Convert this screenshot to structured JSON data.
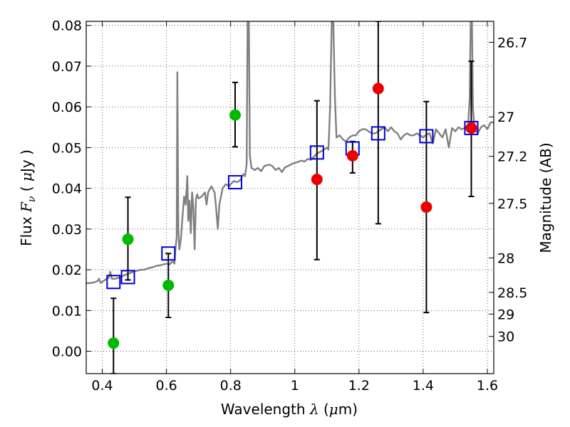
{
  "chart_data": {
    "type": "scatter",
    "xlabel": "Wavelength  λ (μm)",
    "xlabel_parts": {
      "pre": "Wavelength  ",
      "sym": "λ",
      "post": " (",
      "mu": "μ",
      "unit": "m)"
    },
    "ylabel": "Flux  Fν  ( μJy )",
    "ylabel_parts": {
      "pre": "Flux  ",
      "sym": "F",
      "sub": "ν",
      "open": "  ( ",
      "mu": "μ",
      "unit": "Jy )"
    },
    "y2label": "Magnitude (AB)",
    "xlim": [
      0.35,
      1.62
    ],
    "ylim": [
      -0.0055,
      0.081
    ],
    "xticks": [
      0.4,
      0.6,
      0.8,
      1.0,
      1.2,
      1.4,
      1.6
    ],
    "xtick_labels": [
      "0.4",
      "0.6",
      "0.8",
      "1",
      "1.2",
      "1.4",
      "1.6"
    ],
    "yticks": [
      0.0,
      0.01,
      0.02,
      0.03,
      0.04,
      0.05,
      0.06,
      0.07,
      0.08
    ],
    "ytick_labels": [
      "0.00",
      "0.01",
      "0.02",
      "0.03",
      "0.04",
      "0.05",
      "0.06",
      "0.07",
      "0.08"
    ],
    "mag_ticks": [
      26.7,
      27,
      27.2,
      27.5,
      28,
      28.5,
      29,
      30
    ],
    "mag_tick_labels": [
      "26.7",
      "27",
      "27.2",
      "27.5",
      "28",
      "28.5",
      "29",
      "30"
    ],
    "grid": true,
    "colors": {
      "spectrum": "#808080",
      "green": "#00bb00",
      "red": "#ee0000",
      "model": "#0000dd",
      "errorbar": "#000000"
    },
    "observed_green": [
      {
        "x": 0.435,
        "y": 0.002,
        "ylo": -0.0055,
        "yhi": 0.013
      },
      {
        "x": 0.48,
        "y": 0.0275,
        "ylo": 0.0175,
        "yhi": 0.0378
      },
      {
        "x": 0.606,
        "y": 0.0162,
        "ylo": 0.0083,
        "yhi": 0.024
      },
      {
        "x": 0.814,
        "y": 0.058,
        "ylo": 0.0502,
        "yhi": 0.066
      }
    ],
    "observed_red": [
      {
        "x": 1.069,
        "y": 0.0422,
        "ylo": 0.0225,
        "yhi": 0.0615
      },
      {
        "x": 1.18,
        "y": 0.048,
        "ylo": 0.0438,
        "yhi": 0.0515
      },
      {
        "x": 1.26,
        "y": 0.0645,
        "ylo": 0.0313,
        "yhi": 0.081
      },
      {
        "x": 1.41,
        "y": 0.0354,
        "ylo": 0.0095,
        "yhi": 0.0613
      },
      {
        "x": 1.55,
        "y": 0.0548,
        "ylo": 0.038,
        "yhi": 0.0712
      }
    ],
    "model_points": [
      {
        "x": 0.435,
        "y": 0.017
      },
      {
        "x": 0.48,
        "y": 0.0182
      },
      {
        "x": 0.606,
        "y": 0.024
      },
      {
        "x": 0.814,
        "y": 0.0415
      },
      {
        "x": 1.069,
        "y": 0.0488
      },
      {
        "x": 1.18,
        "y": 0.0498
      },
      {
        "x": 1.26,
        "y": 0.0535
      },
      {
        "x": 1.41,
        "y": 0.0528
      },
      {
        "x": 1.55,
        "y": 0.0548
      }
    ],
    "spectrum": [
      [
        0.35,
        0.0167
      ],
      [
        0.37,
        0.0168
      ],
      [
        0.385,
        0.0172
      ],
      [
        0.39,
        0.0178
      ],
      [
        0.395,
        0.0168
      ],
      [
        0.4,
        0.017
      ],
      [
        0.41,
        0.0176
      ],
      [
        0.42,
        0.018
      ],
      [
        0.425,
        0.0195
      ],
      [
        0.43,
        0.0178
      ],
      [
        0.44,
        0.0178
      ],
      [
        0.45,
        0.018
      ],
      [
        0.46,
        0.0183
      ],
      [
        0.47,
        0.0187
      ],
      [
        0.48,
        0.019
      ],
      [
        0.49,
        0.0193
      ],
      [
        0.5,
        0.0196
      ],
      [
        0.51,
        0.0198
      ],
      [
        0.52,
        0.02
      ],
      [
        0.53,
        0.02
      ],
      [
        0.54,
        0.0203
      ],
      [
        0.55,
        0.0205
      ],
      [
        0.56,
        0.0207
      ],
      [
        0.57,
        0.021
      ],
      [
        0.58,
        0.0211
      ],
      [
        0.59,
        0.0213
      ],
      [
        0.6,
        0.0215
      ],
      [
        0.61,
        0.0213
      ],
      [
        0.615,
        0.0218
      ],
      [
        0.62,
        0.022
      ],
      [
        0.625,
        0.0215
      ],
      [
        0.628,
        0.025
      ],
      [
        0.632,
        0.028
      ],
      [
        0.634,
        0.0685
      ],
      [
        0.637,
        0.03
      ],
      [
        0.64,
        0.025
      ],
      [
        0.645,
        0.0275
      ],
      [
        0.65,
        0.033
      ],
      [
        0.655,
        0.038
      ],
      [
        0.66,
        0.036
      ],
      [
        0.665,
        0.043
      ],
      [
        0.668,
        0.032
      ],
      [
        0.672,
        0.037
      ],
      [
        0.676,
        0.029
      ],
      [
        0.68,
        0.039
      ],
      [
        0.684,
        0.035
      ],
      [
        0.688,
        0.025
      ],
      [
        0.692,
        0.0375
      ],
      [
        0.696,
        0.0385
      ],
      [
        0.7,
        0.0375
      ],
      [
        0.71,
        0.038
      ],
      [
        0.72,
        0.039
      ],
      [
        0.725,
        0.036
      ],
      [
        0.73,
        0.039
      ],
      [
        0.74,
        0.0405
      ],
      [
        0.75,
        0.039
      ],
      [
        0.755,
        0.035
      ],
      [
        0.76,
        0.03
      ],
      [
        0.765,
        0.036
      ],
      [
        0.775,
        0.04
      ],
      [
        0.785,
        0.041
      ],
      [
        0.795,
        0.0405
      ],
      [
        0.8,
        0.041
      ],
      [
        0.81,
        0.0418
      ],
      [
        0.82,
        0.0415
      ],
      [
        0.83,
        0.042
      ],
      [
        0.84,
        0.0435
      ],
      [
        0.845,
        0.043
      ],
      [
        0.85,
        0.046
      ],
      [
        0.853,
        0.081
      ],
      [
        0.857,
        0.081
      ],
      [
        0.86,
        0.048
      ],
      [
        0.865,
        0.045
      ],
      [
        0.875,
        0.0445
      ],
      [
        0.885,
        0.045
      ],
      [
        0.895,
        0.0442
      ],
      [
        0.905,
        0.0455
      ],
      [
        0.92,
        0.0458
      ],
      [
        0.93,
        0.0455
      ],
      [
        0.94,
        0.0445
      ],
      [
        0.95,
        0.045
      ],
      [
        0.96,
        0.044
      ],
      [
        0.97,
        0.0452
      ],
      [
        0.98,
        0.0455
      ],
      [
        0.99,
        0.046
      ],
      [
        1.0,
        0.0462
      ],
      [
        1.01,
        0.0465
      ],
      [
        1.02,
        0.0468
      ],
      [
        1.03,
        0.0466
      ],
      [
        1.04,
        0.0472
      ],
      [
        1.05,
        0.047
      ],
      [
        1.06,
        0.0478
      ],
      [
        1.07,
        0.0486
      ],
      [
        1.08,
        0.049
      ],
      [
        1.09,
        0.0495
      ],
      [
        1.1,
        0.05
      ],
      [
        1.105,
        0.0495
      ],
      [
        1.11,
        0.06
      ],
      [
        1.115,
        0.081
      ],
      [
        1.12,
        0.081
      ],
      [
        1.125,
        0.062
      ],
      [
        1.13,
        0.0525
      ],
      [
        1.14,
        0.053
      ],
      [
        1.15,
        0.052
      ],
      [
        1.16,
        0.0515
      ],
      [
        1.17,
        0.0525
      ],
      [
        1.18,
        0.053
      ],
      [
        1.19,
        0.053
      ],
      [
        1.2,
        0.054
      ],
      [
        1.21,
        0.0545
      ],
      [
        1.22,
        0.0545
      ],
      [
        1.23,
        0.054
      ],
      [
        1.24,
        0.0535
      ],
      [
        1.25,
        0.0535
      ],
      [
        1.26,
        0.054
      ],
      [
        1.27,
        0.0545
      ],
      [
        1.28,
        0.055
      ],
      [
        1.29,
        0.054
      ],
      [
        1.3,
        0.055
      ],
      [
        1.31,
        0.054
      ],
      [
        1.32,
        0.0535
      ],
      [
        1.33,
        0.052
      ],
      [
        1.34,
        0.053
      ],
      [
        1.35,
        0.0535
      ],
      [
        1.36,
        0.053
      ],
      [
        1.37,
        0.053
      ],
      [
        1.38,
        0.0535
      ],
      [
        1.39,
        0.053
      ],
      [
        1.4,
        0.0525
      ],
      [
        1.41,
        0.0532
      ],
      [
        1.42,
        0.0535
      ],
      [
        1.43,
        0.051
      ],
      [
        1.44,
        0.0545
      ],
      [
        1.45,
        0.0535
      ],
      [
        1.46,
        0.0525
      ],
      [
        1.47,
        0.0545
      ],
      [
        1.48,
        0.05
      ],
      [
        1.49,
        0.0548
      ],
      [
        1.5,
        0.054
      ],
      [
        1.51,
        0.055
      ],
      [
        1.52,
        0.0545
      ],
      [
        1.53,
        0.0548
      ],
      [
        1.54,
        0.0555
      ],
      [
        1.545,
        0.062
      ],
      [
        1.548,
        0.081
      ],
      [
        1.552,
        0.081
      ],
      [
        1.555,
        0.06
      ],
      [
        1.56,
        0.0545
      ],
      [
        1.57,
        0.0535
      ],
      [
        1.58,
        0.055
      ],
      [
        1.59,
        0.0555
      ],
      [
        1.6,
        0.0545
      ],
      [
        1.61,
        0.0562
      ],
      [
        1.62,
        0.0562
      ]
    ]
  }
}
